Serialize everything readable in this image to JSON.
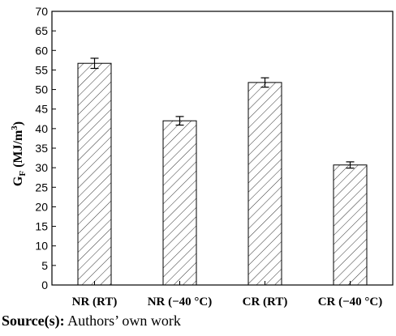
{
  "chart_data": {
    "type": "bar",
    "categories": [
      "NR (RT)",
      "NR (−40 °C)",
      "CR (RT)",
      "CR (−40 °C)"
    ],
    "values": [
      56.7,
      42.0,
      51.8,
      30.7
    ],
    "errors": [
      1.3,
      1.1,
      1.2,
      0.8
    ],
    "ylabel": {
      "main": "G",
      "sub": "F",
      "units": " (MJ/m",
      "sup": "3",
      "close": ")"
    },
    "ylim": [
      0,
      70
    ],
    "yticks": [
      0,
      5,
      10,
      15,
      20,
      25,
      30,
      35,
      40,
      45,
      50,
      55,
      60,
      65,
      70
    ],
    "bar_fill": "hatched",
    "grid": false,
    "legend": "none"
  },
  "source": {
    "label": "Source(s):",
    "text": " Authors’ own work"
  }
}
